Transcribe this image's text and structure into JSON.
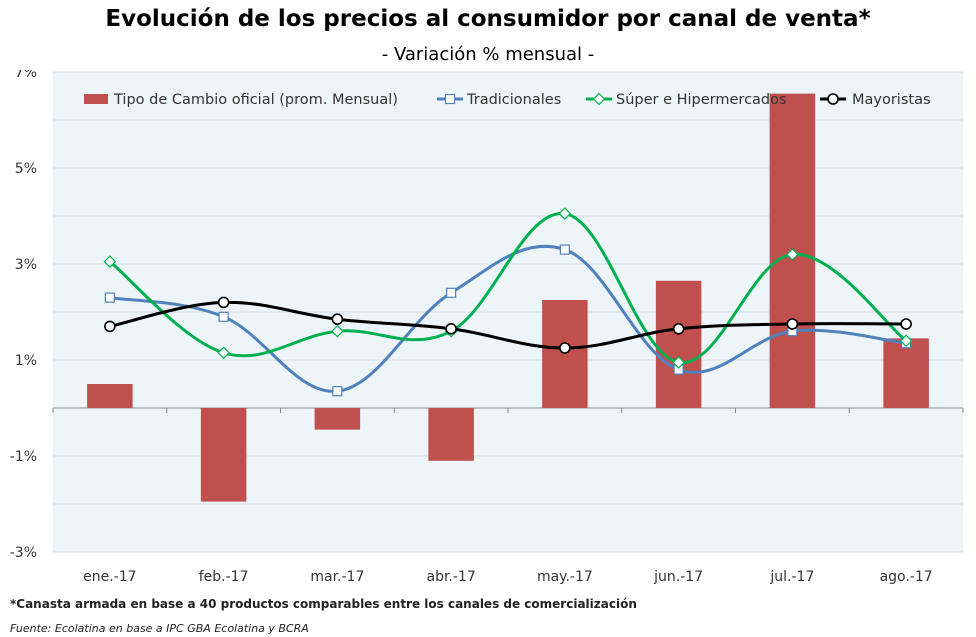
{
  "title": "Evolución de los precios al consumidor por canal de venta*",
  "subtitle": "- Variación % mensual -",
  "footnote": "*Canasta armada en base a 40 productos comparables entre los canales de comercialización",
  "source": "Fuente: Ecolatina en base a IPC GBA Ecolatina y BCRA",
  "chart_data": {
    "type": "bar",
    "categories": [
      "ene.-17",
      "feb.-17",
      "mar.-17",
      "abr.-17",
      "may.-17",
      "jun.-17",
      "jul.-17",
      "ago.-17"
    ],
    "ylim": [
      -3,
      7
    ],
    "y_ticks": [
      {
        "value": 7,
        "label": "7%"
      },
      {
        "value": 5,
        "label": "5%"
      },
      {
        "value": 3,
        "label": "3%"
      },
      {
        "value": 1,
        "label": "1%"
      },
      {
        "value": -1,
        "label": "-1%"
      },
      {
        "value": -3,
        "label": "-3%"
      }
    ],
    "grid": true,
    "legend_position": "top",
    "background": "#eef5f9",
    "series": [
      {
        "name": "Tipo de Cambio oficial (prom. Mensual)",
        "type": "bar",
        "color": "#c0504d",
        "values": [
          0.5,
          -1.95,
          -0.45,
          -1.1,
          2.25,
          2.65,
          6.55,
          1.45
        ]
      },
      {
        "name": "Tradicionales",
        "type": "line",
        "color": "#4f81bd",
        "marker": "square",
        "values": [
          2.3,
          1.9,
          0.35,
          2.4,
          3.3,
          0.8,
          1.6,
          1.35
        ]
      },
      {
        "name": "Súper e Hipermercados",
        "type": "line",
        "color": "#00b050",
        "marker": "diamond",
        "values": [
          3.05,
          1.15,
          1.6,
          1.6,
          4.05,
          0.95,
          3.2,
          1.4
        ]
      },
      {
        "name": "Mayoristas",
        "type": "line",
        "color": "#000000",
        "marker": "circle",
        "values": [
          1.7,
          2.2,
          1.85,
          1.65,
          1.25,
          1.65,
          1.75,
          1.75
        ]
      }
    ],
    "negative_tick_color": "#c00000"
  }
}
